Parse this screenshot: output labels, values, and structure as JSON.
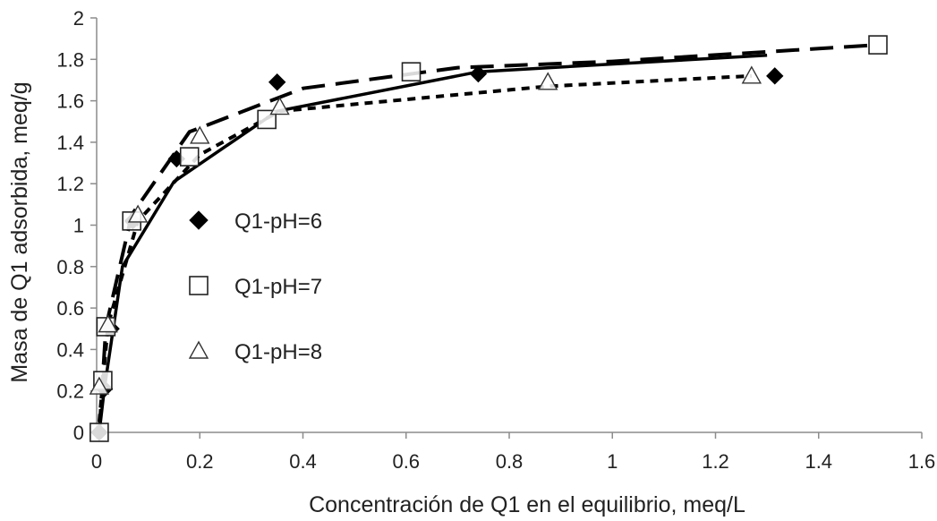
{
  "chart_data": {
    "type": "scatter",
    "title": "",
    "xlabel": "Concentración de Q1 en el equilibrio, meq/L",
    "ylabel": "Masa de Q1 adsorbida, meq/g",
    "xlim": [
      0,
      1.6
    ],
    "ylim": [
      0,
      2
    ],
    "x_ticks": [
      "0",
      "0.2",
      "0.4",
      "0.6",
      "0.8",
      "1",
      "1.2",
      "1.4",
      "1.6"
    ],
    "y_ticks": [
      "0",
      "0.2",
      "0.4",
      "0.6",
      "0.8",
      "1",
      "1.2",
      "1.4",
      "1.6",
      "1.8",
      "2"
    ],
    "grid": false,
    "legend_position": "left-center",
    "series": [
      {
        "name": "Q1-pH=6",
        "marker": "diamond-filled",
        "line_style": "solid",
        "color": "#000000",
        "points": [
          [
            0.005,
            0.0
          ],
          [
            0.015,
            0.21
          ],
          [
            0.028,
            0.5
          ],
          [
            0.07,
            1.02
          ],
          [
            0.155,
            1.32
          ],
          [
            0.35,
            1.69
          ],
          [
            0.74,
            1.73
          ],
          [
            1.315,
            1.72
          ]
        ],
        "fit": [
          [
            0.005,
            0.0
          ],
          [
            0.015,
            0.21
          ],
          [
            0.05,
            0.8
          ],
          [
            0.15,
            1.21
          ],
          [
            0.35,
            1.55
          ],
          [
            0.74,
            1.74
          ],
          [
            1.3,
            1.82
          ]
        ]
      },
      {
        "name": "Q1-pH=7",
        "marker": "square-open",
        "line_style": "long-dash",
        "color": "#000000",
        "points": [
          [
            0.005,
            0.0
          ],
          [
            0.012,
            0.25
          ],
          [
            0.018,
            0.51
          ],
          [
            0.068,
            1.02
          ],
          [
            0.18,
            1.33
          ],
          [
            0.33,
            1.51
          ],
          [
            0.61,
            1.74
          ],
          [
            1.515,
            1.87
          ]
        ],
        "fit": [
          [
            0.005,
            0.0
          ],
          [
            0.018,
            0.51
          ],
          [
            0.068,
            1.05
          ],
          [
            0.18,
            1.45
          ],
          [
            0.4,
            1.66
          ],
          [
            0.7,
            1.76
          ],
          [
            1.0,
            1.79
          ],
          [
            1.515,
            1.87
          ]
        ]
      },
      {
        "name": "Q1-pH=8",
        "marker": "triangle-open",
        "line_style": "short-dash",
        "color": "#000000",
        "points": [
          [
            0.005,
            0.22
          ],
          [
            0.022,
            0.52
          ],
          [
            0.08,
            1.05
          ],
          [
            0.2,
            1.43
          ],
          [
            0.355,
            1.57
          ],
          [
            0.875,
            1.69
          ],
          [
            1.27,
            1.72
          ]
        ],
        "fit": [
          [
            0.005,
            0.05
          ],
          [
            0.022,
            0.52
          ],
          [
            0.08,
            1.02
          ],
          [
            0.2,
            1.34
          ],
          [
            0.355,
            1.55
          ],
          [
            0.875,
            1.67
          ],
          [
            1.27,
            1.72
          ]
        ]
      }
    ]
  }
}
